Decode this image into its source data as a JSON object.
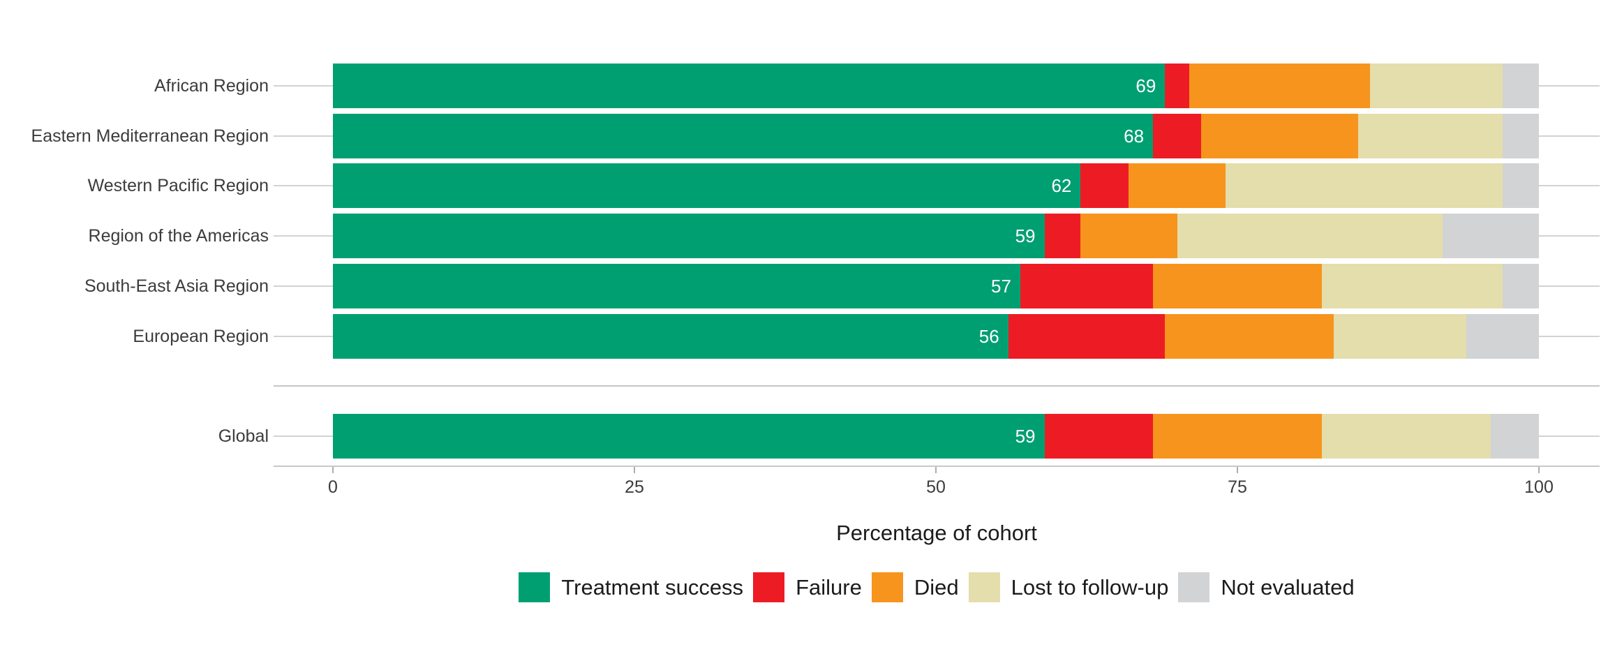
{
  "chart_data": {
    "type": "bar",
    "orientation": "horizontal",
    "stacked": true,
    "title": "",
    "xlabel": "Percentage of cohort",
    "ylabel": "",
    "xlim": [
      0,
      100
    ],
    "x_ticks": [
      "0",
      "25",
      "50",
      "75",
      "100"
    ],
    "x_tick_values": [
      0,
      25,
      50,
      75,
      100
    ],
    "grid": "horizontal-category-lines",
    "legend_position": "bottom",
    "gap_after_category_index": 5,
    "categories": [
      "African Region",
      "Eastern Mediterranean Region",
      "Western Pacific Region",
      "Region of the Americas",
      "South-East Asia Region",
      "European Region",
      "Global"
    ],
    "series": [
      {
        "name": "Treatment success",
        "color": "#009F72",
        "values": [
          69,
          68,
          62,
          59,
          57,
          56,
          59
        ]
      },
      {
        "name": "Failure",
        "color": "#ED1C24",
        "values": [
          2,
          4,
          4,
          3,
          11,
          13,
          9
        ]
      },
      {
        "name": "Died",
        "color": "#F7941E",
        "values": [
          15,
          13,
          8,
          8,
          14,
          14,
          14
        ]
      },
      {
        "name": "Lost to follow-up",
        "color": "#E4DDAC",
        "values": [
          11,
          12,
          23,
          22,
          15,
          11,
          14
        ]
      },
      {
        "name": "Not evaluated",
        "color": "#D1D3D4",
        "values": [
          3,
          3,
          3,
          8,
          3,
          6,
          4
        ]
      }
    ],
    "bar_labels": [
      "69",
      "68",
      "62",
      "59",
      "57",
      "56",
      "59"
    ],
    "bar_label_series": "Treatment success",
    "bar_label_color": "#ffffff"
  }
}
